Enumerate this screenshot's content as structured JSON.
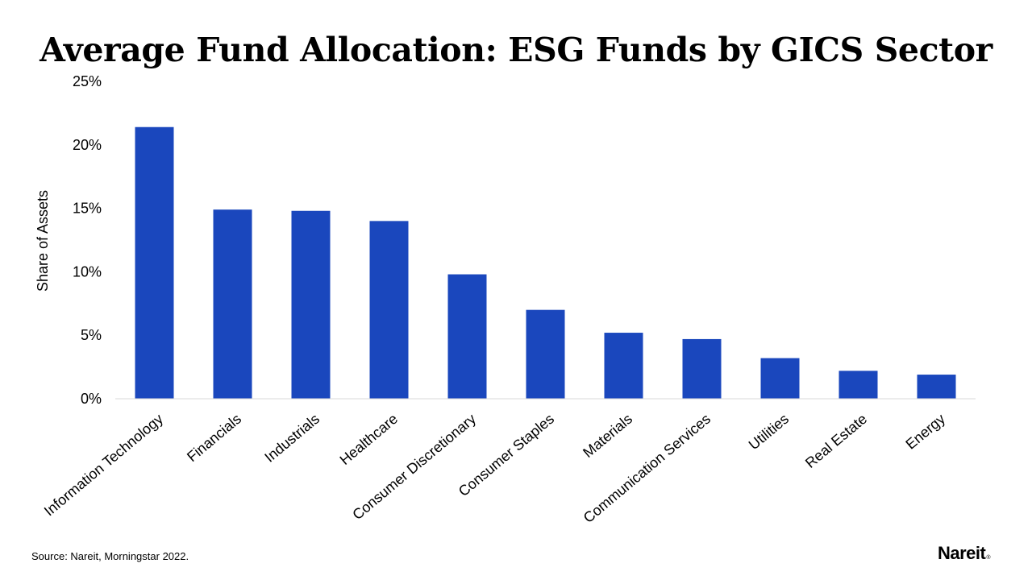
{
  "chart_data": {
    "type": "bar",
    "title": "Average Fund Allocation: ESG Funds by GICS Sector",
    "xlabel": "",
    "ylabel": "Share of Assets",
    "ylim": [
      0,
      25
    ],
    "yticks": [
      "0%",
      "5%",
      "10%",
      "15%",
      "20%",
      "25%"
    ],
    "ytick_values": [
      0,
      5,
      10,
      15,
      20,
      25
    ],
    "categories": [
      "Information Technology",
      "Financials",
      "Industrials",
      "Healthcare",
      "Consumer Discretionary",
      "Consumer Staples",
      "Materials",
      "Communication Services",
      "Utilities",
      "Real Estate",
      "Energy"
    ],
    "values": [
      21.4,
      14.9,
      14.8,
      14.0,
      9.8,
      7.0,
      5.2,
      4.7,
      3.2,
      2.2,
      1.9
    ],
    "bar_color": "#1a47bd",
    "grid": false,
    "legend": "none"
  },
  "footer": {
    "source": "Source: Nareit, Morningstar 2022.",
    "logo_text": "Nareit",
    "logo_mark": "®"
  }
}
